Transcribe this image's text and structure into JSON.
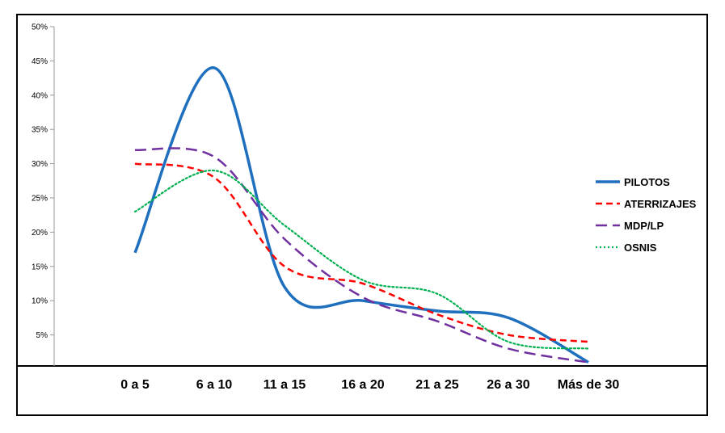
{
  "chart_data": {
    "type": "line",
    "title": "",
    "xlabel": "",
    "ylabel": "",
    "categories": [
      "0 a 5",
      "6 a 10",
      "11 a 15",
      "16 a 20",
      "21 a 25",
      "26 a 30",
      "Más de 30"
    ],
    "yticks": [
      "5%",
      "10%",
      "15%",
      "20%",
      "25%",
      "30%",
      "35%",
      "40%",
      "45%",
      "50%"
    ],
    "ylim": [
      0,
      50
    ],
    "grid": false,
    "legend_position": "right",
    "series": [
      {
        "name": "PILOTOS",
        "values": [
          17,
          44,
          12,
          10,
          8.5,
          7.5,
          1
        ],
        "color": "#1f6fbf",
        "style": "solid"
      },
      {
        "name": "ATERRIZAJES",
        "values": [
          30,
          28,
          15,
          12.5,
          8,
          5,
          4
        ],
        "color": "#ff0000",
        "style": "dashed"
      },
      {
        "name": "MDP/LP",
        "values": [
          32,
          31,
          19,
          10.5,
          7,
          3,
          1
        ],
        "color": "#7030a0",
        "style": "longdash"
      },
      {
        "name": "OSNIS",
        "values": [
          23,
          29,
          21,
          13,
          11,
          4,
          3
        ],
        "color": "#00b050",
        "style": "dotted"
      }
    ]
  }
}
